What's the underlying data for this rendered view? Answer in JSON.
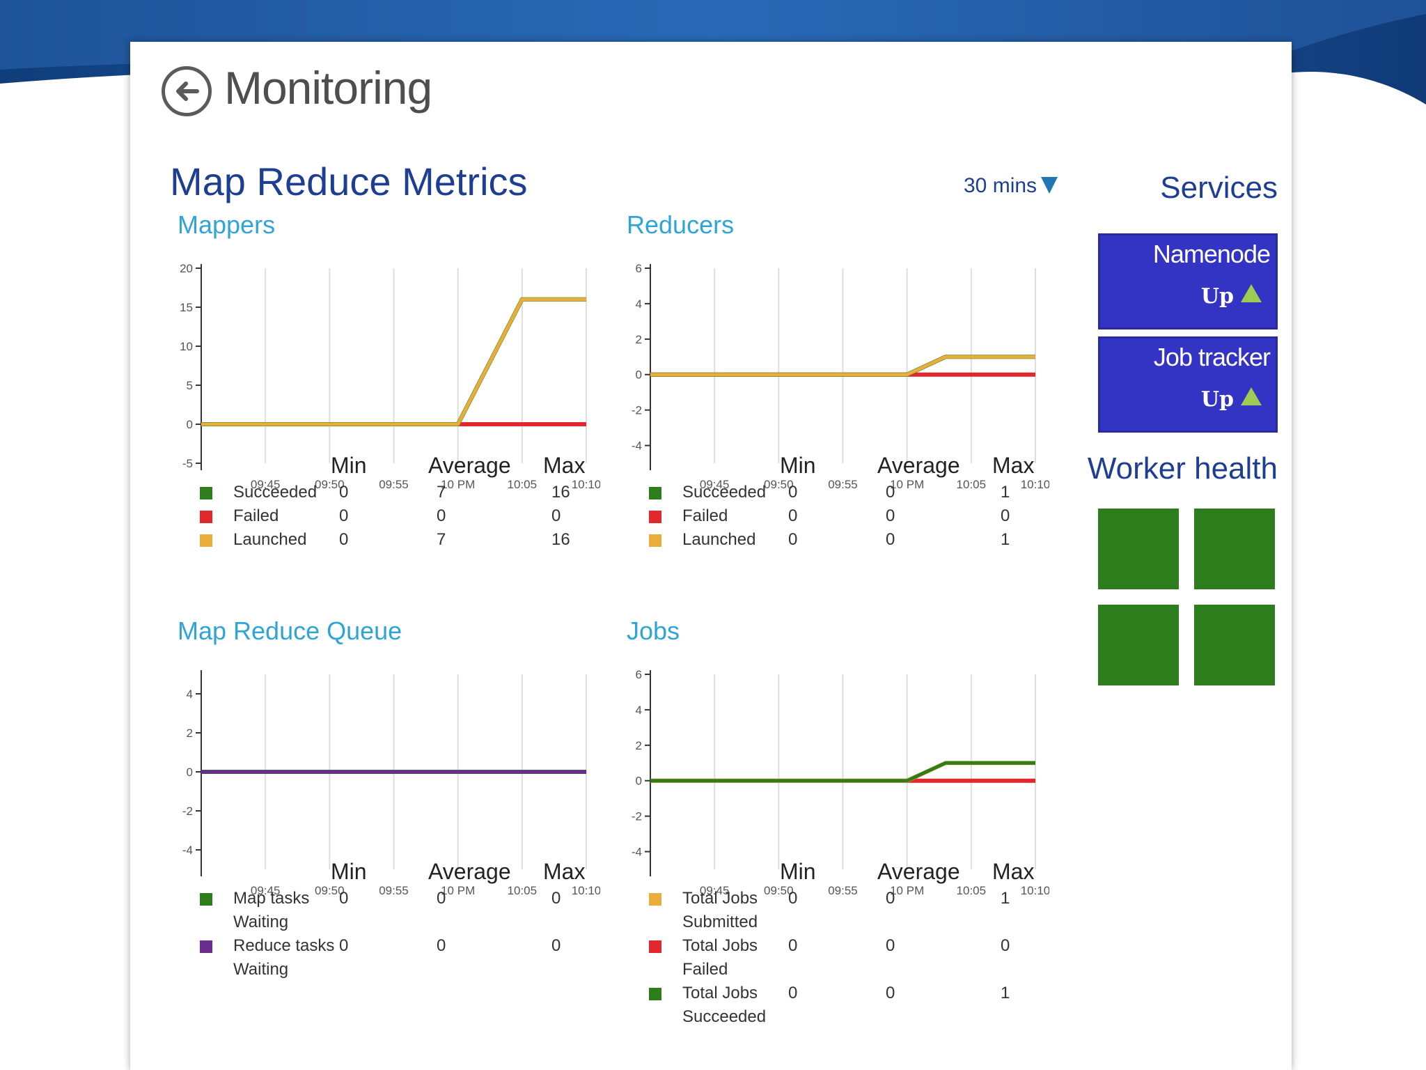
{
  "header": {
    "title": "Monitoring",
    "back_icon": "arrow-left-circle-icon"
  },
  "metrics": {
    "title": "Map Reduce Metrics",
    "time_range": "30 mins"
  },
  "services": {
    "title": "Services",
    "items": [
      {
        "name": "Namenode",
        "status": "Up"
      },
      {
        "name": "Job tracker",
        "status": "Up"
      }
    ]
  },
  "worker_health": {
    "title": "Worker health",
    "workers": [
      "healthy",
      "healthy",
      "healthy",
      "healthy"
    ],
    "color": "#2e7d1c"
  },
  "colors": {
    "succeeded": "#2e7d1c",
    "failed": "#e0282e",
    "launched": "#e8ad3a",
    "reduce_waiting": "#6a2c8e"
  },
  "panels": [
    {
      "title": "Mappers",
      "columns": [
        "Min",
        "Average",
        "Max"
      ],
      "rows": [
        {
          "label": "Succeeded",
          "color": "#2e7d1c",
          "min": "0",
          "avg": "7",
          "max": "16"
        },
        {
          "label": "Failed",
          "color": "#e0282e",
          "min": "0",
          "avg": "0",
          "max": "0"
        },
        {
          "label": "Launched",
          "color": "#e8ad3a",
          "min": "0",
          "avg": "7",
          "max": "16"
        }
      ]
    },
    {
      "title": "Reducers",
      "columns": [
        "Min",
        "Average",
        "Max"
      ],
      "rows": [
        {
          "label": "Succeeded",
          "color": "#2e7d1c",
          "min": "0",
          "avg": "0",
          "max": "1"
        },
        {
          "label": "Failed",
          "color": "#e0282e",
          "min": "0",
          "avg": "0",
          "max": "0"
        },
        {
          "label": "Launched",
          "color": "#e8ad3a",
          "min": "0",
          "avg": "0",
          "max": "1"
        }
      ]
    },
    {
      "title": "Map Reduce Queue",
      "columns": [
        "Min",
        "Average",
        "Max"
      ],
      "rows": [
        {
          "label": "Map tasks Waiting",
          "color": "#2e7d1c",
          "min": "0",
          "avg": "0",
          "max": "0"
        },
        {
          "label": "Reduce tasks Waiting",
          "color": "#6a2c8e",
          "min": "0",
          "avg": "0",
          "max": "0"
        }
      ]
    },
    {
      "title": "Jobs",
      "columns": [
        "Min",
        "Average",
        "Max"
      ],
      "rows": [
        {
          "label": "Total Jobs Submitted",
          "color": "#e8ad3a",
          "min": "0",
          "avg": "0",
          "max": "1"
        },
        {
          "label": "Total Jobs Failed",
          "color": "#e0282e",
          "min": "0",
          "avg": "0",
          "max": "0"
        },
        {
          "label": "Total Jobs Succeeded",
          "color": "#2e7d1c",
          "min": "0",
          "avg": "0",
          "max": "1"
        }
      ]
    }
  ],
  "chart_data": [
    {
      "type": "line",
      "x": [
        "09:40",
        "09:45",
        "09:50",
        "09:55",
        "10 PM",
        "10:05",
        "10:10"
      ],
      "x_tick_labels": [
        "09:45",
        "09:50",
        "09:55",
        "10 PM",
        "10:05",
        "10:10"
      ],
      "y_ticks": [
        "20",
        "15",
        "10",
        "5",
        "0",
        "-5"
      ],
      "ylim": [
        -5,
        20
      ],
      "series": [
        {
          "color": "#e0282e",
          "values": [
            0,
            0,
            0,
            0,
            0,
            0,
            0
          ]
        },
        {
          "color": "#2e7d1c",
          "values": [
            0,
            0,
            0,
            0,
            0,
            16,
            16
          ]
        },
        {
          "color": "#e8ad3a",
          "values": [
            0,
            0,
            0,
            0,
            0,
            16,
            16
          ]
        }
      ]
    },
    {
      "type": "line",
      "x": [
        "09:40",
        "09:45",
        "09:50",
        "09:55",
        "10 PM",
        "10:03",
        "10:10"
      ],
      "x_tick_labels": [
        "09:45",
        "09:50",
        "09:55",
        "10 PM",
        "10:05",
        "10:10"
      ],
      "y_ticks": [
        "6",
        "4",
        "2",
        "0",
        "-2",
        "-4"
      ],
      "ylim": [
        -5,
        6
      ],
      "series": [
        {
          "color": "#e0282e",
          "values": [
            0,
            0,
            0,
            0,
            0,
            0,
            0
          ]
        },
        {
          "color": "#2e7d1c",
          "values": [
            0,
            0,
            0,
            0,
            0,
            1,
            1
          ]
        },
        {
          "color": "#e8ad3a",
          "values": [
            0,
            0,
            0,
            0,
            0,
            1,
            1
          ]
        }
      ]
    },
    {
      "type": "line",
      "x": [
        "09:40",
        "09:45",
        "09:50",
        "09:55",
        "10 PM",
        "10:05",
        "10:10"
      ],
      "x_tick_labels": [
        "09:45",
        "09:50",
        "09:55",
        "10 PM",
        "10:05",
        "10:10"
      ],
      "y_ticks": [
        "4",
        "2",
        "0",
        "-2",
        "-4"
      ],
      "ylim": [
        -5,
        5
      ],
      "series": [
        {
          "color": "#2e7d1c",
          "values": [
            0,
            0,
            0,
            0,
            0,
            0,
            0
          ]
        },
        {
          "color": "#6a2c8e",
          "values": [
            0,
            0,
            0,
            0,
            0,
            0,
            0
          ]
        }
      ]
    },
    {
      "type": "line",
      "x": [
        "09:40",
        "09:45",
        "09:50",
        "09:55",
        "10 PM",
        "10:03",
        "10:10"
      ],
      "x_tick_labels": [
        "09:45",
        "09:50",
        "09:55",
        "10 PM",
        "10:05",
        "10:10"
      ],
      "y_ticks": [
        "6",
        "4",
        "2",
        "0",
        "-2",
        "-4"
      ],
      "ylim": [
        -5,
        6
      ],
      "series": [
        {
          "color": "#e0282e",
          "values": [
            0,
            0,
            0,
            0,
            0,
            0,
            0
          ]
        },
        {
          "color": "#e8ad3a",
          "values": [
            0,
            0,
            0,
            0,
            0,
            1,
            1
          ]
        },
        {
          "color": "#2e7d1c",
          "values": [
            0,
            0,
            0,
            0,
            0,
            1,
            1
          ]
        }
      ]
    }
  ]
}
